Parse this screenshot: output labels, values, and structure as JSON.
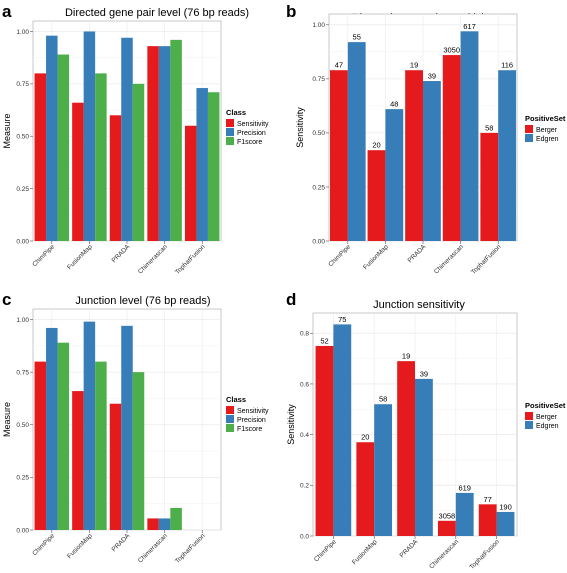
{
  "colors": {
    "sensitivity": "#e41a1c",
    "precision": "#377eb8",
    "f1score": "#4daf4a",
    "berger": "#e41a1c",
    "edgren": "#377eb8",
    "panel_bg": "#ffffff",
    "grid": "#ebebeb"
  },
  "chart_data": [
    {
      "panel": "a",
      "type": "bar",
      "title": "Directed gene pair level (76 bp reads)",
      "xlabel": "",
      "ylabel": "Measure",
      "ylim": [
        0,
        1.05
      ],
      "yticks": [
        "0.00",
        "0.25",
        "0.50",
        "0.75",
        "1.00"
      ],
      "yticks_values": [
        0,
        0.25,
        0.5,
        0.75,
        1.0
      ],
      "categories": [
        "ChimPipe",
        "FusionMap",
        "PRADA",
        "Chimerascan",
        "TophatFusion"
      ],
      "legend": {
        "title": "Class",
        "position": "right"
      },
      "series": [
        {
          "name": "Sensitivity",
          "color_key": "sensitivity",
          "values": [
            0.8,
            0.66,
            0.6,
            0.93,
            0.55
          ]
        },
        {
          "name": "Precision",
          "color_key": "precision",
          "values": [
            0.98,
            1.0,
            0.97,
            0.93,
            0.73
          ]
        },
        {
          "name": "F1score",
          "color_key": "f1score",
          "values": [
            0.89,
            0.8,
            0.75,
            0.96,
            0.71
          ]
        }
      ],
      "grid": true
    },
    {
      "panel": "b",
      "type": "bar",
      "title": "Directed gene pair sensitivity",
      "xlabel": "",
      "ylabel": "Sensitivity",
      "ylim": [
        0,
        1.05
      ],
      "yticks": [
        "0.00",
        "0.25",
        "0.50",
        "0.75",
        "1.00"
      ],
      "yticks_values": [
        0,
        0.25,
        0.5,
        0.75,
        1.0
      ],
      "categories": [
        "ChimPipe",
        "FusionMap",
        "PRADA",
        "Chimerascan",
        "TophatFusion"
      ],
      "legend": {
        "title": "PositiveSet",
        "position": "right"
      },
      "series": [
        {
          "name": "Berger",
          "color_key": "berger",
          "values": [
            0.79,
            0.42,
            0.79,
            0.86,
            0.5
          ],
          "labels": [
            "47",
            "20",
            "19",
            "3050",
            "58"
          ]
        },
        {
          "name": "Edgren",
          "color_key": "edgren",
          "values": [
            0.92,
            0.61,
            0.74,
            0.97,
            0.79
          ],
          "labels": [
            "55",
            "48",
            "39",
            "617",
            "116"
          ]
        }
      ],
      "grid": true
    },
    {
      "panel": "c",
      "type": "bar",
      "title": "Junction level (76 bp reads)",
      "xlabel": "",
      "ylabel": "Measure",
      "ylim": [
        0,
        1.05
      ],
      "yticks": [
        "0.00",
        "0.25",
        "0.50",
        "0.75",
        "1.00"
      ],
      "yticks_values": [
        0,
        0.25,
        0.5,
        0.75,
        1.0
      ],
      "categories": [
        "ChimPipe",
        "FusionMap",
        "PRADA",
        "Chimerascan",
        "TophatFusion"
      ],
      "legend": {
        "title": "Class",
        "position": "right"
      },
      "series": [
        {
          "name": "Sensitivity",
          "color_key": "sensitivity",
          "values": [
            0.8,
            0.66,
            0.6,
            0.055,
            0.0
          ]
        },
        {
          "name": "Precision",
          "color_key": "precision",
          "values": [
            0.96,
            0.99,
            0.97,
            0.055,
            0.0
          ]
        },
        {
          "name": "F1score",
          "color_key": "f1score",
          "values": [
            0.89,
            0.8,
            0.75,
            0.105,
            0.0
          ]
        }
      ],
      "grid": true
    },
    {
      "panel": "d",
      "type": "bar",
      "title": "Junction sensitivity",
      "xlabel": "",
      "ylabel": "Sensitivity",
      "ylim": [
        0,
        0.88
      ],
      "yticks": [
        "0.0",
        "0.2",
        "0.4",
        "0.6",
        "0.8"
      ],
      "yticks_values": [
        0,
        0.2,
        0.4,
        0.6,
        0.8
      ],
      "categories": [
        "ChimPipe",
        "FusionMap",
        "PRADA",
        "Chimerascan",
        "TophatFusion"
      ],
      "legend": {
        "title": "PositiveSet",
        "position": "right"
      },
      "series": [
        {
          "name": "Berger",
          "color_key": "berger",
          "values": [
            0.75,
            0.37,
            0.69,
            0.06,
            0.125
          ],
          "labels": [
            "52",
            "20",
            "19",
            "3058",
            "77"
          ]
        },
        {
          "name": "Edgren",
          "color_key": "edgren",
          "values": [
            0.835,
            0.52,
            0.62,
            0.17,
            0.095
          ],
          "labels": [
            "75",
            "58",
            "39",
            "619",
            "190"
          ]
        }
      ],
      "grid": true
    }
  ]
}
